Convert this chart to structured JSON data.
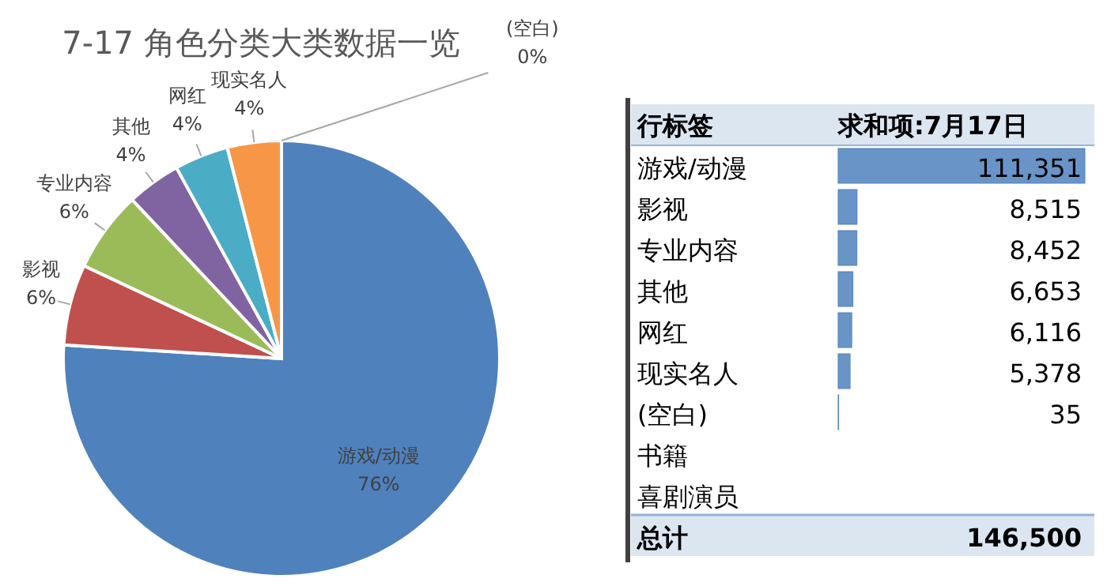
{
  "chart_data": [
    {
      "type": "pie",
      "title": "7-17 角色分类大类数据一览",
      "categories": [
        "游戏/动漫",
        "影视",
        "专业内容",
        "其他",
        "网红",
        "现实名人",
        "(空白)"
      ],
      "values": [
        76,
        6,
        6,
        4,
        4,
        4,
        0
      ],
      "colors": [
        "#4f81bd",
        "#c0504d",
        "#9bbb59",
        "#8064a2",
        "#4bacc6",
        "#f79646",
        "#2c4d75"
      ],
      "value_labels": [
        "76%",
        "6%",
        "6%",
        "4%",
        "4%",
        "4%",
        "0%"
      ]
    },
    {
      "type": "bar",
      "orientation": "horizontal",
      "ylabel": "行标签",
      "title": "求和项:7月17日",
      "categories": [
        "游戏/动漫",
        "影视",
        "专业内容",
        "其他",
        "网红",
        "现实名人",
        "(空白)",
        "书籍",
        "喜剧演员"
      ],
      "values": [
        111351,
        8515,
        8452,
        6653,
        6116,
        5378,
        35,
        null,
        null
      ],
      "value_labels": [
        "111,351",
        "8,515",
        "8,452",
        "6,653",
        "6,116",
        "5,378",
        "35",
        null,
        null
      ],
      "color": "#4f81bd",
      "annotations": [
        "总计",
        "146,500"
      ]
    }
  ]
}
